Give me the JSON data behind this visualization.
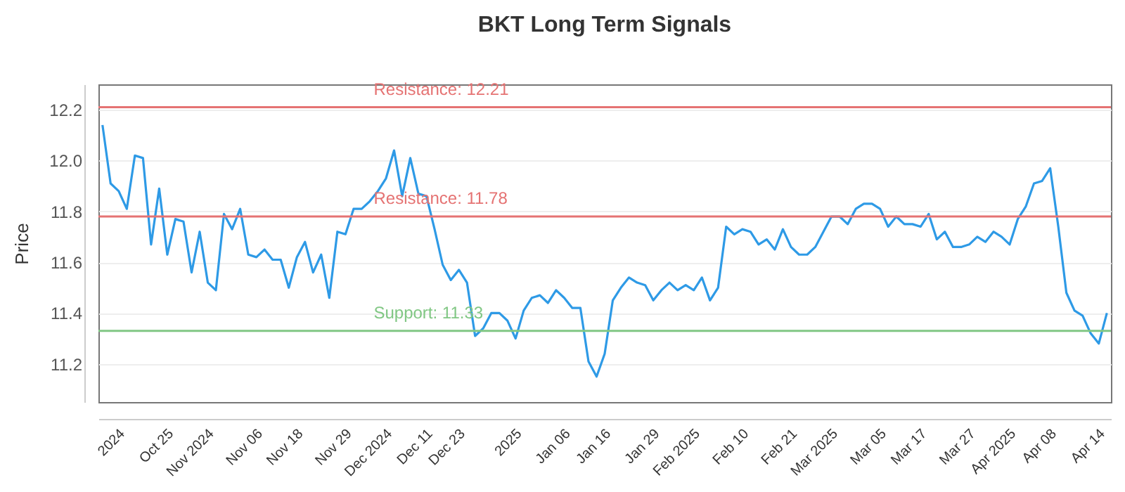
{
  "chart_data": {
    "type": "line",
    "title": "BKT Long Term Signals",
    "ylabel": "Price",
    "categories": [
      null,
      null,
      null,
      "2024",
      null,
      null,
      null,
      null,
      null,
      "Oct 25",
      null,
      null,
      null,
      null,
      "Nov 2024",
      null,
      null,
      null,
      null,
      null,
      "Nov 06",
      null,
      null,
      null,
      null,
      "Nov 18",
      null,
      null,
      null,
      null,
      null,
      "Nov 29",
      null,
      null,
      null,
      null,
      "Dec 2024",
      null,
      null,
      null,
      null,
      "Dec 11",
      null,
      null,
      null,
      "Dec 23",
      null,
      null,
      null,
      null,
      null,
      null,
      "2025",
      null,
      null,
      null,
      null,
      null,
      "Jan 06",
      null,
      null,
      null,
      null,
      "Jan 16",
      null,
      null,
      null,
      null,
      null,
      "Jan 29",
      null,
      null,
      null,
      null,
      "Feb 2025",
      null,
      null,
      null,
      null,
      null,
      "Feb 10",
      null,
      null,
      null,
      null,
      null,
      "Feb 21",
      null,
      null,
      null,
      null,
      "Mar 2025",
      null,
      null,
      null,
      null,
      null,
      "Mar 05",
      null,
      null,
      null,
      null,
      "Mar 17",
      null,
      null,
      null,
      null,
      null,
      "Mar 27",
      null,
      null,
      null,
      null,
      "Apr 2025",
      null,
      null,
      null,
      null,
      "Apr 08",
      null,
      null,
      null,
      null,
      null,
      "Apr 14"
    ],
    "series": [
      {
        "color": "#2e9ae6",
        "values": [
          12.14,
          11.91,
          11.88,
          11.81,
          12.02,
          12.01,
          11.67,
          11.89,
          11.63,
          11.77,
          11.76,
          11.56,
          11.72,
          11.52,
          11.49,
          11.79,
          11.73,
          11.81,
          11.63,
          11.62,
          11.65,
          11.61,
          11.61,
          11.5,
          11.62,
          11.68,
          11.56,
          11.63,
          11.46,
          11.72,
          11.71,
          11.81,
          11.81,
          11.84,
          11.88,
          11.93,
          12.04,
          11.86,
          12.01,
          11.87,
          11.86,
          11.73,
          11.59,
          11.53,
          11.57,
          11.52,
          11.31,
          11.34,
          11.4,
          11.4,
          11.37,
          11.3,
          11.41,
          11.46,
          11.47,
          11.44,
          11.49,
          11.46,
          11.42,
          11.42,
          11.21,
          11.15,
          11.24,
          11.45,
          11.5,
          11.54,
          11.52,
          11.51,
          11.45,
          11.49,
          11.52,
          11.49,
          11.51,
          11.49,
          11.54,
          11.45,
          11.5,
          11.74,
          11.71,
          11.73,
          11.72,
          11.67,
          11.69,
          11.65,
          11.73,
          11.66,
          11.63,
          11.63,
          11.66,
          11.72,
          11.78,
          11.78,
          11.75,
          11.81,
          11.83,
          11.83,
          11.81,
          11.74,
          11.78,
          11.75,
          11.75,
          11.74,
          11.79,
          11.69,
          11.72,
          11.66,
          11.66,
          11.67,
          11.7,
          11.68,
          11.72,
          11.7,
          11.67,
          11.77,
          11.82,
          11.91,
          11.92,
          11.97,
          11.74,
          11.48,
          11.41,
          11.39,
          11.32,
          11.28,
          11.4
        ]
      }
    ],
    "ylim": [
      11.05,
      12.3
    ],
    "yticks": [
      11.2,
      11.4,
      11.6,
      11.8,
      {
        "value": 12,
        "label": "12.0"
      },
      12.2
    ],
    "grid": "y",
    "marker": "none",
    "line_style": "solid",
    "ref_lines": [
      {
        "axis": "y",
        "value": 12.21,
        "label": "Resistance: 12.21",
        "color": "#e57373"
      },
      {
        "axis": "y",
        "value": 11.78,
        "label": "Resistance: 11.78",
        "color": "#e57373"
      },
      {
        "axis": "y",
        "value": 11.33,
        "label": "Support: 11.33",
        "color": "#81c784"
      }
    ]
  }
}
